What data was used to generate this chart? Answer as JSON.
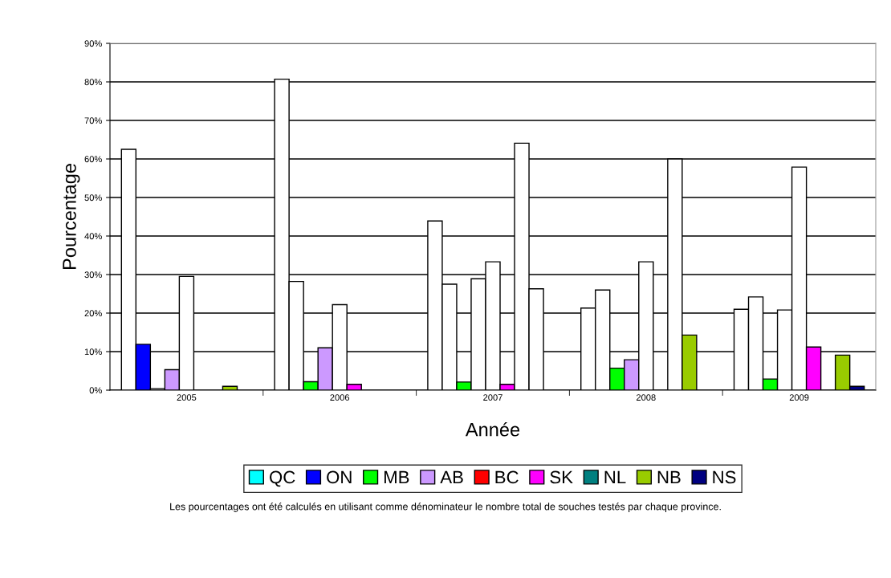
{
  "chart_data": {
    "type": "bar",
    "xlabel": "Année",
    "ylabel": "Pourcentage",
    "categories": [
      "2005",
      "2006",
      "2007",
      "2008",
      "2009"
    ],
    "series": [
      {
        "name": "QC",
        "color": "#00ffff",
        "colors": [
          "#ffffff",
          "#ffffff",
          "#ffffff",
          "#ffffff",
          "#ffffff"
        ],
        "values": [
          62.5,
          80.7,
          43.9,
          21.3,
          21.0
        ]
      },
      {
        "name": "ON",
        "color": "#0000ff",
        "colors": [
          "#0000ff",
          "#ffffff",
          "#ffffff",
          "#ffffff",
          "#ffffff"
        ],
        "values": [
          11.9,
          28.2,
          27.5,
          26.0,
          24.2
        ]
      },
      {
        "name": "MB",
        "color": "#00ff00",
        "colors": [
          "#ffffff",
          "#00ff00",
          "#00ff00",
          "#00ff00",
          "#00ff00"
        ],
        "values": [
          0.4,
          2.2,
          2.1,
          5.7,
          2.9
        ]
      },
      {
        "name": "AB",
        "color": "#cc99ff",
        "colors": [
          "#cc99ff",
          "#cc99ff",
          "#ffffff",
          "#cc99ff",
          "#ffffff"
        ],
        "values": [
          5.3,
          11.0,
          28.9,
          7.9,
          20.8
        ]
      },
      {
        "name": "BC",
        "color": "#ff0000",
        "colors": [
          "#ffffff",
          "#ffffff",
          "#ffffff",
          "#ffffff",
          "#ffffff"
        ],
        "values": [
          29.5,
          22.2,
          33.3,
          33.3,
          57.9
        ]
      },
      {
        "name": "SK",
        "color": "#ff00ff",
        "colors": [
          "#ff00ff",
          "#ff00ff",
          "#ff00ff",
          "#ff00ff",
          "#ff00ff"
        ],
        "values": [
          null,
          1.5,
          1.5,
          null,
          11.2
        ]
      },
      {
        "name": "NL",
        "color": "#008080",
        "colors": [
          "#ffffff",
          "#ffffff",
          "#ffffff",
          "#ffffff",
          "#ffffff"
        ],
        "values": [
          null,
          null,
          64.1,
          60.0,
          null
        ]
      },
      {
        "name": "NB",
        "color": "#99cc00",
        "colors": [
          "#99cc00",
          "#99cc00",
          "#ffffff",
          "#99cc00",
          "#99cc00"
        ],
        "values": [
          1.0,
          null,
          26.3,
          14.3,
          9.1
        ]
      },
      {
        "name": "NS",
        "color": "#000080",
        "colors": [
          "#000080",
          "#000080",
          "#000080",
          "#000080",
          "#000080"
        ],
        "values": [
          null,
          null,
          null,
          null,
          1.0
        ]
      }
    ],
    "ylim": [
      0,
      90
    ],
    "yticks": [
      {
        "value": 0,
        "label": "0%"
      },
      {
        "value": 10,
        "label": "10%"
      },
      {
        "value": 20,
        "label": "20%"
      },
      {
        "value": 30,
        "label": "30%"
      },
      {
        "value": 40,
        "label": "40%"
      },
      {
        "value": 50,
        "label": "50%"
      },
      {
        "value": 60,
        "label": "60%"
      },
      {
        "value": 70,
        "label": "70%"
      },
      {
        "value": 80,
        "label": "80%"
      },
      {
        "value": 90,
        "label": "90%"
      }
    ],
    "grid": "y",
    "legend": "bottom",
    "annotations": [
      "Les pourcentages ont été calculés en utilisant comme dénominateur le nombre total de souches testés par chaque province."
    ]
  }
}
